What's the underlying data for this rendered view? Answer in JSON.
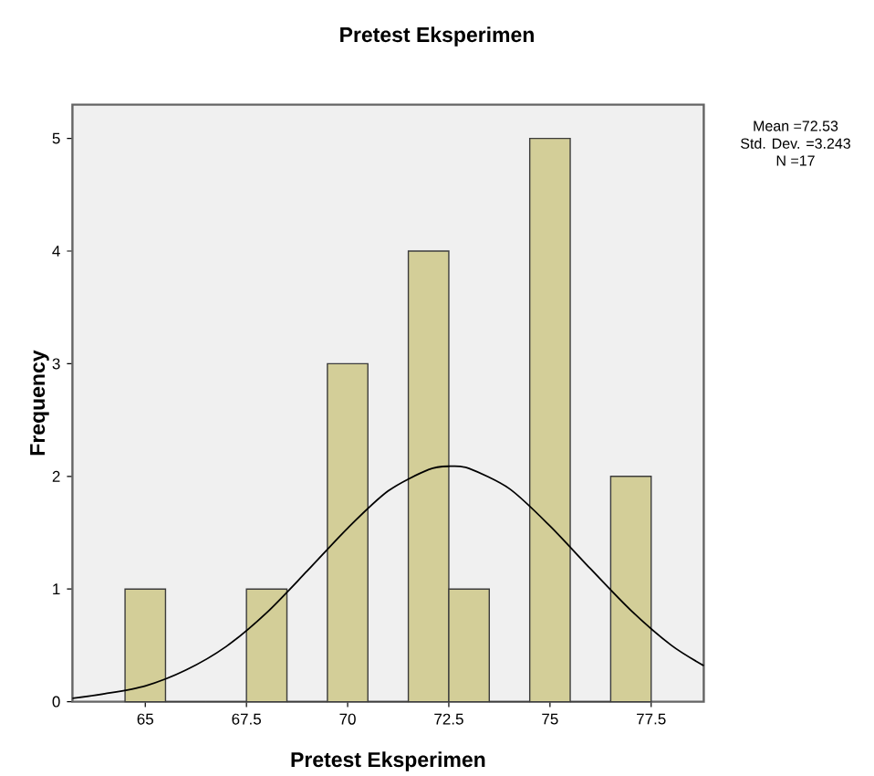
{
  "chart_data": {
    "type": "histogram",
    "title": "Pretest Eksperimen",
    "xlabel": "Pretest Eksperimen",
    "ylabel": "Frequency",
    "bins": [
      64.5,
      65.5,
      66.5,
      67.5,
      68.5,
      69.5,
      70.5,
      71.5,
      72.5,
      73.5,
      74.5,
      75.5,
      76.5,
      77.5
    ],
    "values": [
      1,
      0,
      0,
      1,
      0,
      3,
      0,
      4,
      1,
      0,
      5,
      0,
      2
    ],
    "color": "#d3ce98",
    "series": [
      {
        "type": "line",
        "color": "#000000",
        "x": [
          63.2,
          64,
          65,
          66,
          67,
          68,
          69,
          70,
          71,
          72,
          72.53,
          73,
          74,
          75,
          76,
          77,
          78,
          78.8
        ],
        "values": [
          0.03,
          0.07,
          0.14,
          0.28,
          0.49,
          0.79,
          1.16,
          1.54,
          1.87,
          2.06,
          2.09,
          2.07,
          1.89,
          1.56,
          1.18,
          0.81,
          0.5,
          0.32
        ]
      }
    ],
    "xlim": [
      63.2,
      78.8
    ],
    "ylim": [
      0,
      5.3
    ],
    "xticks": [
      65,
      67.5,
      70,
      72.5,
      75,
      77.5
    ],
    "yticks": [
      0,
      1,
      2,
      3,
      4,
      5
    ],
    "grid": false,
    "marker": "none",
    "annotations": [
      "Mean =72.53",
      "Std. Dev. =3.243",
      "N =17"
    ]
  }
}
